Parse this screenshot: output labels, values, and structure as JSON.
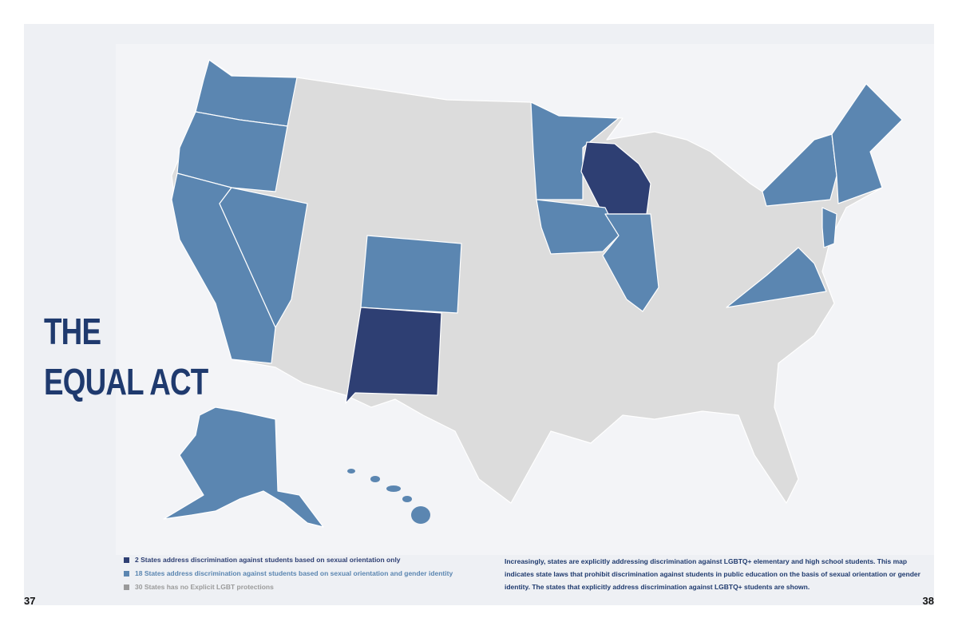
{
  "title": [
    "THE",
    "EQUAL ACT"
  ],
  "legend": [
    "2 States address discrimination against students based on sexual orientation only",
    "18 States address discrimination against students based on sexual orientation and gender identity",
    "30 States has no Explicit LGBT protections"
  ],
  "description": "Increasingly, states are explicitly addressing discrimination against LGBTQ+ elementary and high school students. This map indicates state laws that prohibit discrimination against students in public education on the basis of sexual orientation or gender identity. The states that explicitly address discrimination against LGBTQ+ students are shown.",
  "page_numbers": [
    "37",
    "38"
  ]
}
